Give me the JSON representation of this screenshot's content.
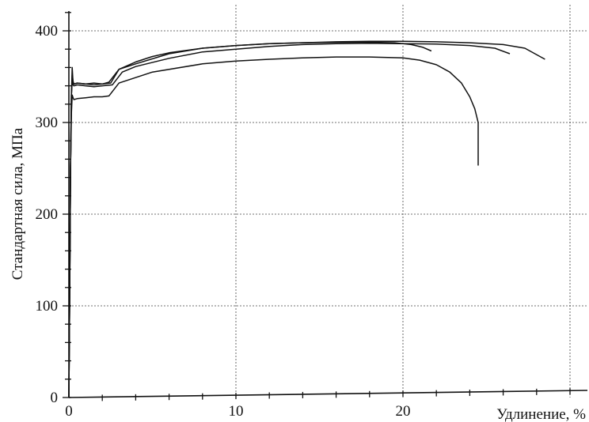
{
  "chart_data": {
    "type": "line",
    "title": "",
    "xlabel": "Удлинение, %",
    "ylabel": "Стандартная сила,  МПа",
    "xlim": [
      0,
      30
    ],
    "ylim": [
      0,
      400
    ],
    "x_ticks": [
      "0",
      "10",
      "20"
    ],
    "y_ticks": [
      "0",
      "100",
      "200",
      "300",
      "400"
    ],
    "grid": "dashed",
    "legend": "none",
    "series": [
      {
        "x": [
          0,
          0.05,
          0.1,
          0.15,
          0.2,
          0.25,
          0.3,
          0.5,
          1.0,
          1.5,
          2.0,
          2.4,
          3.0,
          4,
          5,
          6,
          8,
          10,
          12,
          14,
          16,
          18,
          19.5,
          20.5,
          21.2,
          21.7
        ],
        "values": [
          0,
          120,
          250,
          330,
          352,
          345,
          342,
          343,
          342,
          341,
          342,
          344,
          358,
          366,
          372,
          376,
          381,
          384,
          386,
          387,
          387.5,
          387.5,
          387,
          385,
          382,
          378
        ]
      },
      {
        "x": [
          0,
          0.05,
          0.1,
          0.15,
          0.2,
          0.25,
          0.3,
          0.5,
          1.0,
          1.5,
          2.0,
          2.6,
          3.2,
          4,
          6,
          8,
          10,
          12,
          14,
          16,
          18,
          20,
          22,
          24,
          25.5,
          26.4
        ],
        "values": [
          0,
          120,
          250,
          330,
          345,
          341,
          340,
          341,
          340,
          339,
          340,
          341,
          355,
          361,
          370,
          377,
          380,
          383,
          385,
          386,
          386.5,
          386,
          385.5,
          384,
          381,
          375
        ]
      },
      {
        "x": [
          0,
          0.05,
          0.1,
          0.15,
          0.2,
          0.25,
          0.3,
          0.5,
          1.0,
          1.5,
          2.0,
          2.5,
          3.0,
          4,
          6,
          8,
          10,
          12,
          14,
          16,
          18,
          20,
          22,
          24,
          26,
          27.3,
          28.5
        ],
        "values": [
          0,
          120,
          250,
          330,
          360,
          343,
          342,
          343,
          342,
          343,
          342,
          343,
          358,
          364,
          375,
          381,
          384,
          386,
          387,
          388,
          388.5,
          388.5,
          388,
          387,
          385,
          381,
          369
        ]
      },
      {
        "x": [
          0,
          0.05,
          0.1,
          0.15,
          0.2,
          0.25,
          0.3,
          0.5,
          1.0,
          1.5,
          2.0,
          2.4,
          3.0,
          5,
          8,
          10,
          12,
          14,
          16,
          18,
          20,
          21,
          22,
          22.8,
          23.5,
          24.0,
          24.3,
          24.5,
          24.5,
          24.5
        ],
        "values": [
          0,
          120,
          250,
          310,
          330,
          327,
          325,
          326,
          327,
          328,
          328,
          329,
          343,
          355,
          364,
          367,
          369,
          370.5,
          371.5,
          371.5,
          370.5,
          368,
          363,
          355,
          343,
          328,
          315,
          300,
          280,
          253
        ]
      }
    ]
  }
}
